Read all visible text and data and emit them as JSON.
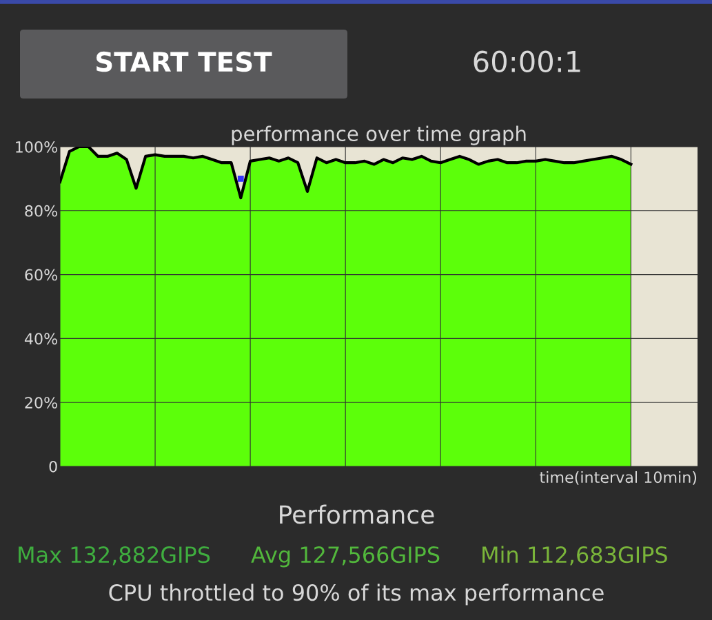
{
  "chart_data": {
    "type": "area",
    "title": "performance over time graph",
    "xlabel": "time(interval 10min)",
    "categories": [
      null,
      null,
      null,
      null,
      null,
      null,
      null,
      null,
      null,
      null,
      null,
      null,
      null,
      null,
      null,
      null,
      null,
      null,
      null,
      null,
      null,
      null,
      null,
      null,
      null,
      null,
      null,
      null,
      null,
      null,
      null,
      null,
      null,
      null,
      null,
      null,
      null,
      null,
      null,
      null,
      null,
      null,
      null,
      null,
      null,
      null,
      null,
      null,
      null,
      null,
      null,
      null,
      null,
      null,
      null,
      null,
      null,
      null,
      null,
      null,
      null,
      null,
      null,
      null,
      null,
      null,
      null,
      null
    ],
    "series": [
      {
        "color": "#5cff0a",
        "values": [
          89,
          98.5,
          100,
          100,
          97,
          97,
          98,
          96,
          87,
          97,
          97.5,
          97,
          97,
          97,
          96.5,
          97,
          96,
          95,
          95,
          84,
          95.5,
          96,
          96.5,
          95.5,
          96.5,
          95,
          86,
          96.5,
          95,
          96,
          95,
          95,
          95.5,
          94.5,
          96,
          95,
          96.5,
          96,
          97,
          95.5,
          95,
          96,
          97,
          96,
          94.5,
          95.5,
          96,
          95,
          95,
          95.5,
          95.5,
          96,
          95.5,
          95,
          95,
          95.5,
          96,
          96.5,
          97,
          96,
          94.5,
          null,
          null,
          null,
          null,
          null,
          null,
          null
        ]
      },
      {
        "type": "scatter",
        "color": "#3333ff",
        "marker": "square",
        "values": [
          null,
          null,
          null,
          null,
          null,
          null,
          null,
          null,
          null,
          null,
          null,
          null,
          null,
          null,
          null,
          null,
          null,
          null,
          null,
          90,
          null,
          null,
          null,
          null,
          null,
          null,
          null,
          null,
          null,
          null,
          null,
          null,
          null,
          null,
          null,
          null,
          null,
          null,
          null,
          null,
          null,
          null,
          null,
          null,
          null,
          null,
          null,
          null,
          null,
          null,
          null,
          null,
          null,
          null,
          null,
          null,
          null,
          null,
          null,
          null,
          null,
          null,
          null,
          null,
          null,
          null,
          null,
          null
        ]
      }
    ],
    "ylim": [
      0,
      100
    ],
    "yticks": [
      0,
      {
        "value": 20,
        "label": "20%"
      },
      {
        "value": 40,
        "label": "40%"
      },
      {
        "value": 60,
        "label": "60%"
      },
      {
        "value": 80,
        "label": "80%"
      },
      {
        "value": 100,
        "label": "100%"
      }
    ],
    "tick_labels": "y",
    "grid": true,
    "annotations": [
      "START TEST",
      "60:00:1",
      "Performance",
      "Max 132,882GIPS",
      "Avg 127,566GIPS",
      "Min 112,683GIPS",
      "CPU throttled to 90% of its max performance"
    ]
  }
}
